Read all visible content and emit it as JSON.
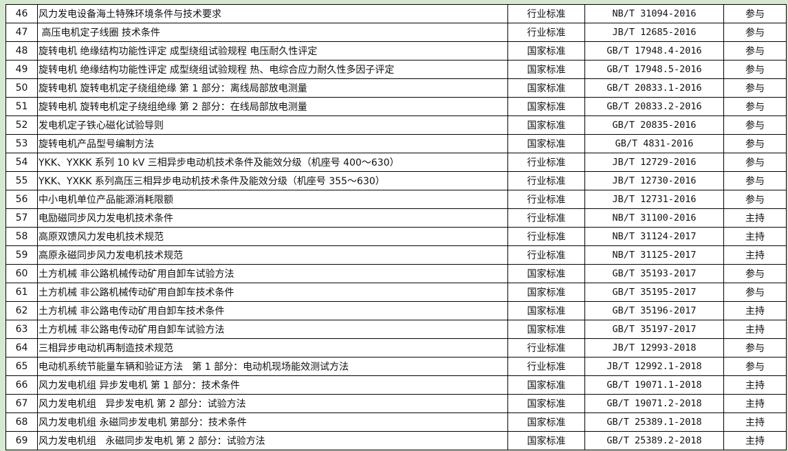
{
  "rows": [
    {
      "no": "46",
      "title": "风力发电设备海土特殊环境条件与技术要求",
      "type": "行业标准",
      "code": "NB/T 31094-2016",
      "role": "参与"
    },
    {
      "no": "47",
      "title": " 高压电机定子线圈 技术条件",
      "type": "行业标准",
      "code": "JB/T 12685-2016",
      "role": "参与"
    },
    {
      "no": "48",
      "title": "旋转电机 绝缘结构功能性评定 成型绕组试验规程 电压耐久性评定",
      "type": "国家标准",
      "code": "GB/T 17948.4-2016",
      "role": "参与"
    },
    {
      "no": "49",
      "title": "旋转电机 绝缘结构功能性评定 成型绕组试验规程 热、电综合应力耐久性多因子评定",
      "type": "国家标准",
      "code": "GB/T 17948.5-2016",
      "role": "参与"
    },
    {
      "no": "50",
      "title": "旋转电机 旋转电机定子绕组绝缘 第 1 部分：离线局部放电测量",
      "type": "国家标准",
      "code": "GB/T 20833.1-2016",
      "role": "参与"
    },
    {
      "no": "51",
      "title": "旋转电机 旋转电机定子绕组绝缘 第 2 部分：在线局部放电测量",
      "type": "国家标准",
      "code": "GB/T 20833.2-2016",
      "role": "参与"
    },
    {
      "no": "52",
      "title": "发电机定子铁心磁化试验导则",
      "type": "国家标准",
      "code": "GB/T 20835-2016",
      "role": "参与"
    },
    {
      "no": "53",
      "title": "旋转电机产品型号编制方法",
      "type": "国家标准",
      "code": "GB/T 4831-2016",
      "role": "参与"
    },
    {
      "no": "54",
      "title": "YKK、YXKK 系列 10 kV 三相异步电动机技术条件及能效分级（机座号 400～630）",
      "type": "行业标准",
      "code": "JB/T 12729-2016",
      "role": "参与"
    },
    {
      "no": "55",
      "title": "YKK、YXKK 系列高压三相异步电动机技术条件及能效分级（机座号 355～630）",
      "type": "行业标准",
      "code": "JB/T 12730-2016",
      "role": "参与"
    },
    {
      "no": "56",
      "title": "中小电机单位产品能源消耗限额",
      "type": "行业标准",
      "code": "JB/T 12731-2016",
      "role": "参与"
    },
    {
      "no": "57",
      "title": "电励磁同步风力发电机技术条件",
      "type": "行业标准",
      "code": "NB/T 31100-2016",
      "role": "主持"
    },
    {
      "no": "58",
      "title": "高原双馈风力发电机技术规范",
      "type": "行业标准",
      "code": "NB/T 31124-2017",
      "role": "主持"
    },
    {
      "no": "59",
      "title": "高原永磁同步风力发电机技术规范",
      "type": "行业标准",
      "code": "NB/T 31125-2017",
      "role": "主持"
    },
    {
      "no": "60",
      "title": "土方机械 非公路机械传动矿用自卸车试验方法",
      "type": "国家标准",
      "code": "GB/T 35193-2017",
      "role": "参与"
    },
    {
      "no": "61",
      "title": "土方机械 非公路机械传动矿用自卸车技术条件",
      "type": "国家标准",
      "code": "GB/T 35195-2017",
      "role": "参与"
    },
    {
      "no": "62",
      "title": "土方机械 非公路电传动矿用自卸车技术条件",
      "type": "国家标准",
      "code": "GB/T 35196-2017",
      "role": "主持"
    },
    {
      "no": "63",
      "title": "土方机械 非公路电传动矿用自卸车试验方法",
      "type": "国家标准",
      "code": "GB/T 35197-2017",
      "role": "主持"
    },
    {
      "no": "64",
      "title": "三相异步电动机再制造技术规范",
      "type": "行业标准",
      "code": "JB/T 12993-2018",
      "role": "参与"
    },
    {
      "no": "65",
      "title": "电动机系统节能量车辆和验证方法   第 1 部分：电动机现场能效测试方法",
      "type": "行业标准",
      "code": "JB/T 12992.1-2018",
      "role": "参与"
    },
    {
      "no": "66",
      "title": "风力发电机组 异步发电机 第 1 部分：技术条件",
      "type": "国家标准",
      "code": "GB/T 19071.1-2018",
      "role": "主持"
    },
    {
      "no": "67",
      "title": "风力发电机组   异步发电机 第 2 部分：试验方法",
      "type": "国家标准",
      "code": "GB/T 19071.2-2018",
      "role": "主持"
    },
    {
      "no": "68",
      "title": "风力发电机组 永磁同步发电机 第部分：技术条件",
      "type": "国家标准",
      "code": "GB/T 25389.1-2018",
      "role": "主持"
    },
    {
      "no": "69",
      "title": "风力发电机组   永磁同步发电机 第 2 部分：试验方法",
      "type": "国家标准",
      "code": "GB/T 25389.2-2018",
      "role": "主持"
    }
  ]
}
